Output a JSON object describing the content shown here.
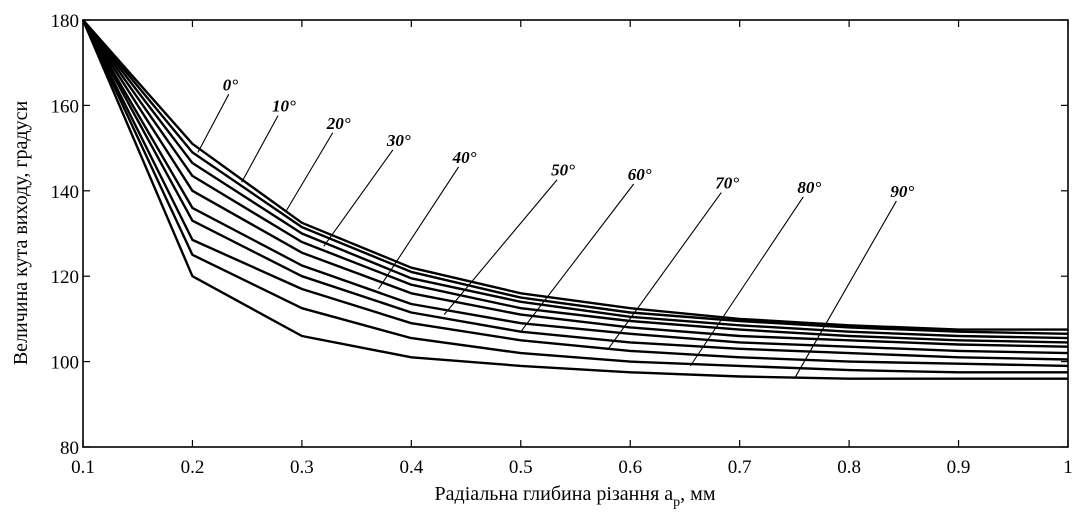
{
  "chart_data": {
    "type": "line",
    "xlabel": "Радіальна глибина різання a",
    "xlabel_sub": "p",
    "xlabel_unit": ", мм",
    "ylabel": "Величина кута виходу, градуси",
    "xlim": [
      0.1,
      1
    ],
    "ylim": [
      80,
      180
    ],
    "x_ticks": [
      "0.1",
      "0.2",
      "0.3",
      "0.4",
      "0.5",
      "0.6",
      "0.7",
      "0.8",
      "0.9",
      "1"
    ],
    "y_ticks": [
      "80",
      "100",
      "120",
      "140",
      "160",
      "180"
    ],
    "x": [
      0.1,
      0.2,
      0.3,
      0.4,
      0.5,
      0.6,
      0.7,
      0.8,
      0.9,
      1.0
    ],
    "series": [
      {
        "name": "0°",
        "values": [
          180,
          151,
          132.5,
          122,
          116,
          112.5,
          110,
          108.5,
          107.5,
          107.5
        ],
        "label_anchor": {
          "x": 0.205,
          "y": 149
        }
      },
      {
        "name": "10°",
        "values": [
          180,
          149,
          131.5,
          121,
          115,
          111.5,
          109.5,
          108,
          107,
          106.5
        ],
        "label_anchor": {
          "x": 0.245,
          "y": 142
        }
      },
      {
        "name": "20°",
        "values": [
          180,
          146.5,
          130,
          119.5,
          114,
          110.5,
          108.5,
          107,
          106,
          105.5
        ],
        "label_anchor": {
          "x": 0.285,
          "y": 135
        }
      },
      {
        "name": "30°",
        "values": [
          180,
          143.5,
          128,
          118,
          112.5,
          109.5,
          107.5,
          106,
          105,
          104.5
        ],
        "label_anchor": {
          "x": 0.32,
          "y": 127
        }
      },
      {
        "name": "40°",
        "values": [
          180,
          140,
          125.5,
          116,
          111,
          108,
          106,
          105,
          104,
          103.5
        ],
        "label_anchor": {
          "x": 0.37,
          "y": 117
        }
      },
      {
        "name": "50°",
        "values": [
          180,
          136,
          122.5,
          113.5,
          109,
          106.5,
          104.5,
          103.5,
          102.5,
          102
        ],
        "label_anchor": {
          "x": 0.43,
          "y": 111
        }
      },
      {
        "name": "60°",
        "values": [
          180,
          133,
          120,
          111.5,
          107,
          104.5,
          103,
          102,
          101,
          100.5
        ],
        "label_anchor": {
          "x": 0.5,
          "y": 107
        }
      },
      {
        "name": "70°",
        "values": [
          180,
          128.5,
          117,
          109,
          105,
          102.5,
          101,
          100,
          99.5,
          99
        ],
        "label_anchor": {
          "x": 0.58,
          "y": 103
        }
      },
      {
        "name": "80°",
        "values": [
          180,
          125,
          112.5,
          105.5,
          102,
          100,
          99,
          98,
          97.5,
          97.5
        ],
        "label_anchor": {
          "x": 0.655,
          "y": 99
        }
      },
      {
        "name": "90°",
        "values": [
          180,
          120,
          106,
          101,
          99,
          97.5,
          96.5,
          96,
          96,
          96
        ],
        "label_anchor": {
          "x": 0.75,
          "y": 96
        }
      }
    ],
    "labels": [
      {
        "series": "0°",
        "x": 0.235,
        "y": 164
      },
      {
        "series": "10°",
        "x": 0.28,
        "y": 159
      },
      {
        "series": "20°",
        "x": 0.33,
        "y": 155
      },
      {
        "series": "30°",
        "x": 0.385,
        "y": 151
      },
      {
        "series": "40°",
        "x": 0.445,
        "y": 147
      },
      {
        "series": "50°",
        "x": 0.535,
        "y": 144
      },
      {
        "series": "60°",
        "x": 0.605,
        "y": 143
      },
      {
        "series": "70°",
        "x": 0.685,
        "y": 141
      },
      {
        "series": "80°",
        "x": 0.76,
        "y": 140
      },
      {
        "series": "90°",
        "x": 0.845,
        "y": 139
      }
    ],
    "grid": false,
    "legend": "inline"
  }
}
